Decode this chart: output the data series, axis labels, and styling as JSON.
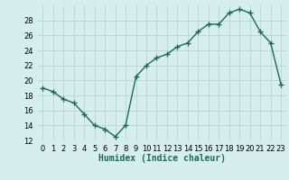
{
  "x": [
    0,
    1,
    2,
    3,
    4,
    5,
    6,
    7,
    8,
    9,
    10,
    11,
    12,
    13,
    14,
    15,
    16,
    17,
    18,
    19,
    20,
    21,
    22,
    23
  ],
  "y": [
    19.0,
    18.5,
    17.5,
    17.0,
    15.5,
    14.0,
    13.5,
    12.5,
    14.0,
    20.5,
    22.0,
    23.0,
    23.5,
    24.5,
    25.0,
    26.5,
    27.5,
    27.5,
    29.0,
    29.5,
    29.0,
    26.5,
    25.0,
    19.5
  ],
  "line_color": "#1a6b5a",
  "bg_color": "#d6eeee",
  "grid_color": "#b8d4d4",
  "xlabel": "Humidex (Indice chaleur)",
  "xlim": [
    -0.5,
    23.5
  ],
  "ylim": [
    12,
    30
  ],
  "yticks": [
    12,
    14,
    16,
    18,
    20,
    22,
    24,
    26,
    28
  ],
  "xtick_labels": [
    "0",
    "1",
    "2",
    "3",
    "4",
    "5",
    "6",
    "7",
    "8",
    "9",
    "10",
    "11",
    "12",
    "13",
    "14",
    "15",
    "16",
    "17",
    "18",
    "19",
    "20",
    "21",
    "22",
    "23"
  ],
  "marker": "+",
  "marker_size": 4,
  "line_width": 1.0,
  "xlabel_fontsize": 7,
  "tick_fontsize": 6
}
